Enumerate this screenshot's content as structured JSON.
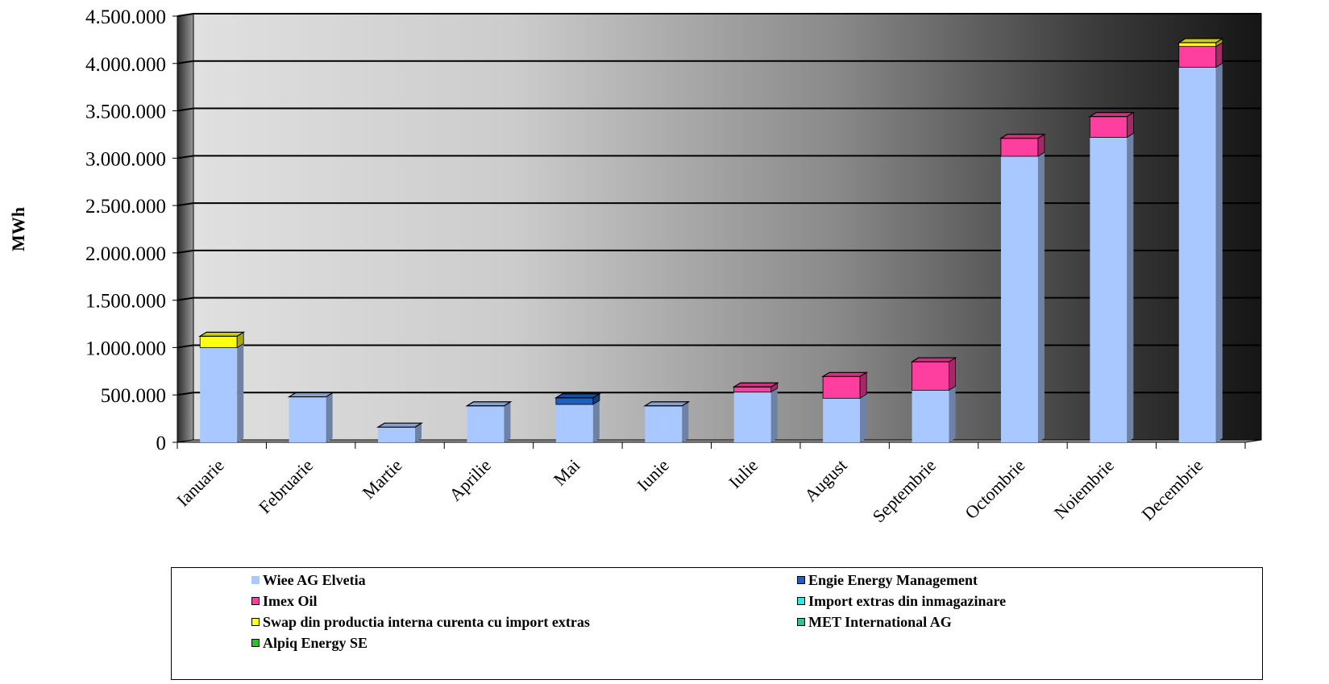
{
  "chart_data": {
    "type": "bar",
    "stacked": true,
    "three_d": true,
    "ylabel": "MWh",
    "ylim": [
      0,
      4500000
    ],
    "y_ticks": [
      0,
      500000,
      1000000,
      1500000,
      2000000,
      2500000,
      3000000,
      3500000,
      4000000,
      4500000
    ],
    "y_tick_labels": [
      "0",
      "500.000",
      "1.000.000",
      "1.500.000",
      "2.000.000",
      "2.500.000",
      "3.000.000",
      "3.500.000",
      "4.000.000",
      "4.500.000"
    ],
    "categories": [
      "Ianuarie",
      "Februarie",
      "Martie",
      "Aprilie",
      "Mai",
      "Iunie",
      "Iulie",
      "August",
      "Septembrie",
      "Octombrie",
      "Noiembrie",
      "Decembrie"
    ],
    "series": [
      {
        "name": "Wiee AG Elvetia",
        "color": "#a9c8ff",
        "values": [
          1000000,
          480000,
          160000,
          385000,
          400000,
          385000,
          530000,
          465000,
          550000,
          3020000,
          3220000,
          3960000
        ]
      },
      {
        "name": "Engie Energy Management",
        "color": "#1f5fbf",
        "values": [
          0,
          0,
          0,
          0,
          70000,
          0,
          0,
          0,
          0,
          0,
          0,
          0
        ]
      },
      {
        "name": "Imex Oil",
        "color": "#ff3f9f",
        "values": [
          0,
          0,
          0,
          0,
          0,
          0,
          55000,
          230000,
          300000,
          190000,
          220000,
          220000
        ]
      },
      {
        "name": "Import extras din inmagazinare",
        "color": "#33e6e6",
        "values": [
          0,
          0,
          0,
          0,
          0,
          0,
          0,
          0,
          0,
          0,
          0,
          0
        ]
      },
      {
        "name": "Swap din productia interna curenta cu import extras",
        "color": "#ffff1a",
        "values": [
          120000,
          0,
          0,
          0,
          0,
          0,
          0,
          0,
          0,
          0,
          0,
          40000
        ]
      },
      {
        "name": "MET International AG",
        "color": "#2fc48f",
        "values": [
          0,
          0,
          0,
          0,
          0,
          0,
          0,
          0,
          0,
          0,
          0,
          0
        ]
      },
      {
        "name": "Alpiq Energy SE",
        "color": "#29c229",
        "values": [
          0,
          0,
          0,
          0,
          0,
          0,
          0,
          0,
          0,
          0,
          0,
          0
        ]
      }
    ],
    "legend_position": "bottom",
    "grid": true
  }
}
